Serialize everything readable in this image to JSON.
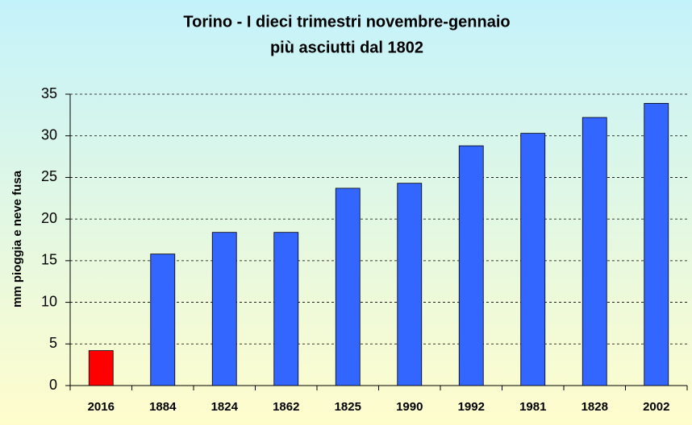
{
  "chart_data": {
    "type": "bar",
    "title": [
      "Torino - I dieci trimestri novembre-gennaio",
      "più asciutti dal 1802"
    ],
    "y_label": "mm pioggia e neve fusa",
    "categories": [
      "2016",
      "1884",
      "1824",
      "1862",
      "1825",
      "1990",
      "1992",
      "1981",
      "1828",
      "2002"
    ],
    "values": [
      4.2,
      15.8,
      18.4,
      18.4,
      23.7,
      24.3,
      28.8,
      30.3,
      32.2,
      33.9
    ],
    "colors": [
      "#ff0000",
      "#3366ff",
      "#3366ff",
      "#3366ff",
      "#3366ff",
      "#3366ff",
      "#3366ff",
      "#3366ff",
      "#3366ff",
      "#3366ff"
    ],
    "ylim": [
      0,
      35
    ],
    "yticks": [
      0,
      5,
      10,
      15,
      20,
      25,
      30,
      35
    ],
    "grid": true
  }
}
